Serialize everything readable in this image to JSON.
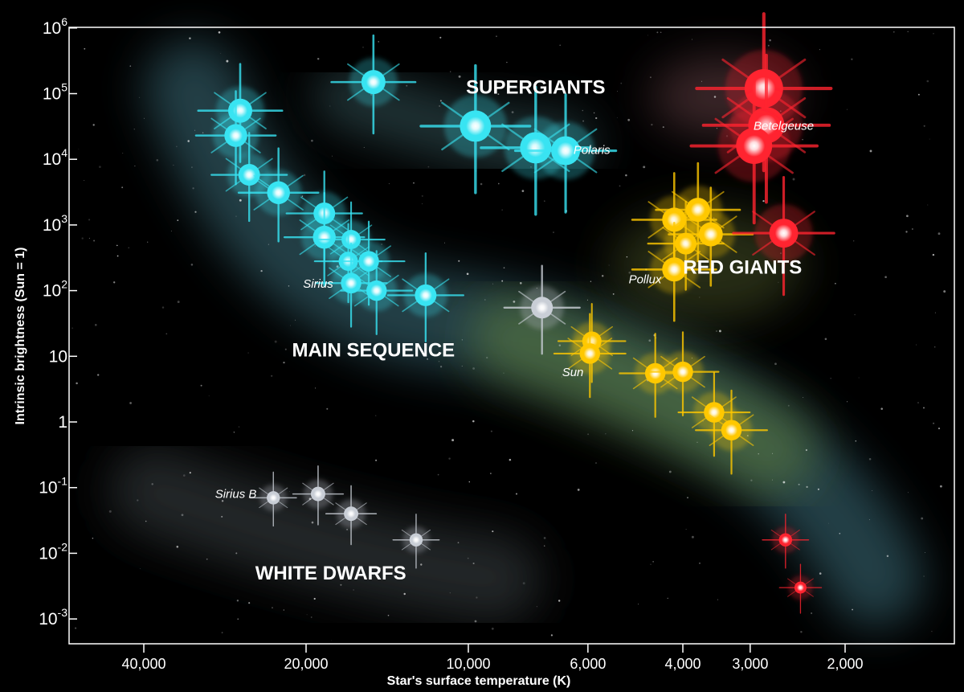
{
  "chart_data": {
    "type": "scatter",
    "xlabel": "Star's surface temperature (K)",
    "ylabel": "Intrinsic brightness (Sun = 1)",
    "x_scale": "log",
    "y_scale": "log",
    "x_direction": "decreasing",
    "x_ticks": [
      {
        "value": 40000,
        "label": "40,000"
      },
      {
        "value": 20000,
        "label": "20,000"
      },
      {
        "value": 10000,
        "label": "10,000"
      },
      {
        "value": 6000,
        "label": "6,000"
      },
      {
        "value": 4000,
        "label": "4,000"
      },
      {
        "value": 3000,
        "label": "3,000"
      },
      {
        "value": 2000,
        "label": "2,000"
      }
    ],
    "y_ticks": [
      {
        "value": 0.001,
        "base": "10",
        "exp": "-3"
      },
      {
        "value": 0.01,
        "base": "10",
        "exp": "-2"
      },
      {
        "value": 0.1,
        "base": "10",
        "exp": "-1"
      },
      {
        "value": 1,
        "base": "1",
        "exp": ""
      },
      {
        "value": 10,
        "base": "10",
        "exp": ""
      },
      {
        "value": 100,
        "base": "10",
        "exp": "2"
      },
      {
        "value": 1000,
        "base": "10",
        "exp": "3"
      },
      {
        "value": 10000,
        "base": "10",
        "exp": "4"
      },
      {
        "value": 100000,
        "base": "10",
        "exp": "5"
      },
      {
        "value": 1000000,
        "base": "10",
        "exp": "6"
      }
    ],
    "xlim": [
      60000,
      1500
    ],
    "ylim": [
      0.0004,
      2000000
    ],
    "regions": [
      {
        "label": "SUPERGIANTS",
        "temp": 7500,
        "lum": 100000
      },
      {
        "label": "RED GIANTS",
        "temp": 3100,
        "lum": 180
      },
      {
        "label": "MAIN SEQUENCE",
        "temp": 15000,
        "lum": 10
      },
      {
        "label": "WHITE DWARFS",
        "temp": 18000,
        "lum": 0.004
      }
    ],
    "star_labels": [
      {
        "text": "Polaris",
        "temp": 5900,
        "lum": 12000
      },
      {
        "text": "Betelgeuse",
        "temp": 2600,
        "lum": 28000
      },
      {
        "text": "Sirius",
        "temp": 19000,
        "lum": 110
      },
      {
        "text": "Pollux",
        "temp": 4700,
        "lum": 130
      },
      {
        "text": "Sun",
        "temp": 6400,
        "lum": 5
      },
      {
        "text": "Sirius B",
        "temp": 27000,
        "lum": 0.07
      }
    ],
    "series": [
      {
        "color": "#38e4f2",
        "points": [
          {
            "temp": 15000,
            "lum": 150000,
            "size": 1.0
          },
          {
            "temp": 9700,
            "lum": 32000,
            "size": 1.3
          },
          {
            "temp": 7500,
            "lum": 15000,
            "size": 1.3
          },
          {
            "temp": 6600,
            "lum": 13500,
            "size": 1.2
          },
          {
            "temp": 26500,
            "lum": 55000,
            "size": 1.0
          },
          {
            "temp": 27000,
            "lum": 23000,
            "size": 0.95
          },
          {
            "temp": 25500,
            "lum": 5800,
            "size": 0.9
          },
          {
            "temp": 22500,
            "lum": 3100,
            "size": 0.95
          },
          {
            "temp": 18500,
            "lum": 1500,
            "size": 0.9
          },
          {
            "temp": 18500,
            "lum": 650,
            "size": 0.95
          },
          {
            "temp": 16500,
            "lum": 600,
            "size": 0.8
          },
          {
            "temp": 16700,
            "lum": 280,
            "size": 0.8
          },
          {
            "temp": 15300,
            "lum": 280,
            "size": 0.85
          },
          {
            "temp": 16500,
            "lum": 130,
            "size": 0.85
          },
          {
            "temp": 14800,
            "lum": 100,
            "size": 0.85
          },
          {
            "temp": 12000,
            "lum": 85,
            "size": 0.9
          }
        ]
      },
      {
        "color": "#c9ced6",
        "points": [
          {
            "temp": 7300,
            "lum": 55,
            "size": 0.9
          },
          {
            "temp": 23000,
            "lum": 0.07,
            "size": 0.55
          },
          {
            "temp": 19000,
            "lum": 0.08,
            "size": 0.6
          },
          {
            "temp": 16500,
            "lum": 0.04,
            "size": 0.6
          },
          {
            "temp": 12500,
            "lum": 0.016,
            "size": 0.55
          }
        ]
      },
      {
        "color": "#ffc800",
        "points": [
          {
            "temp": 4150,
            "lum": 1200,
            "size": 1.0
          },
          {
            "temp": 3750,
            "lum": 1700,
            "size": 1.0
          },
          {
            "temp": 3950,
            "lum": 520,
            "size": 0.9
          },
          {
            "temp": 3550,
            "lum": 720,
            "size": 1.0
          },
          {
            "temp": 4150,
            "lum": 210,
            "size": 1.0
          },
          {
            "temp": 5900,
            "lum": 17,
            "size": 0.8
          },
          {
            "temp": 5950,
            "lum": 11,
            "size": 0.85
          },
          {
            "temp": 4500,
            "lum": 5.5,
            "size": 0.85
          },
          {
            "temp": 4000,
            "lum": 5.8,
            "size": 0.85
          },
          {
            "temp": 3500,
            "lum": 1.4,
            "size": 0.85
          },
          {
            "temp": 3250,
            "lum": 0.75,
            "size": 0.85
          }
        ]
      },
      {
        "color": "#ff2430",
        "points": [
          {
            "temp": 2830,
            "lum": 120000,
            "size": 1.6
          },
          {
            "temp": 2800,
            "lum": 33000,
            "size": 1.5
          },
          {
            "temp": 2950,
            "lum": 16000,
            "size": 1.5
          },
          {
            "temp": 2600,
            "lum": 750,
            "size": 1.2
          },
          {
            "temp": 2580,
            "lum": 0.016,
            "size": 0.55
          },
          {
            "temp": 2420,
            "lum": 0.003,
            "size": 0.5
          }
        ]
      }
    ]
  }
}
